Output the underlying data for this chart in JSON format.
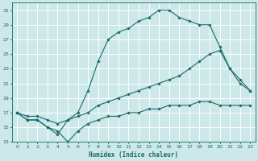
{
  "xlabel": "Humidex (Indice chaleur)",
  "bg_color": "#cce8e8",
  "grid_color": "#ffffff",
  "line_color": "#1a6b6b",
  "xlim": [
    -0.5,
    23.5
  ],
  "ylim": [
    13,
    32
  ],
  "xticks": [
    0,
    1,
    2,
    3,
    4,
    5,
    6,
    7,
    8,
    9,
    10,
    11,
    12,
    13,
    14,
    15,
    16,
    17,
    18,
    19,
    20,
    21,
    22,
    23
  ],
  "yticks": [
    13,
    15,
    17,
    19,
    21,
    23,
    25,
    27,
    29,
    31
  ],
  "line1_x": [
    0,
    1,
    2,
    3,
    4,
    5,
    6,
    7,
    8,
    9,
    10,
    11,
    12,
    13,
    14,
    15,
    16,
    17,
    18,
    19,
    20,
    21,
    22,
    23
  ],
  "line1_y": [
    17,
    16,
    16,
    15,
    14,
    16,
    17,
    20,
    24,
    27,
    28,
    28.5,
    29.5,
    30,
    31,
    31,
    30,
    29.5,
    29,
    29,
    26,
    23,
    21,
    20
  ],
  "line2_x": [
    0,
    1,
    2,
    3,
    4,
    5,
    6,
    7,
    8,
    9,
    10,
    11,
    12,
    13,
    14,
    15,
    16,
    17,
    18,
    19,
    20,
    21,
    22,
    23
  ],
  "line2_y": [
    17,
    16.5,
    16.5,
    16,
    15.5,
    16,
    16.5,
    17,
    18,
    18.5,
    19,
    19.5,
    20,
    20.5,
    21,
    21.5,
    22,
    23,
    24,
    25,
    25.5,
    23,
    21.5,
    20
  ],
  "line3_x": [
    0,
    1,
    2,
    3,
    4,
    5,
    6,
    7,
    8,
    9,
    10,
    11,
    12,
    13,
    14,
    15,
    16,
    17,
    18,
    19,
    20,
    21,
    22,
    23
  ],
  "line3_y": [
    17,
    16,
    16,
    15,
    14.5,
    13,
    14.5,
    15.5,
    16,
    16.5,
    16.5,
    17,
    17,
    17.5,
    17.5,
    18,
    18,
    18,
    18.5,
    18.5,
    18,
    18,
    18,
    18
  ]
}
